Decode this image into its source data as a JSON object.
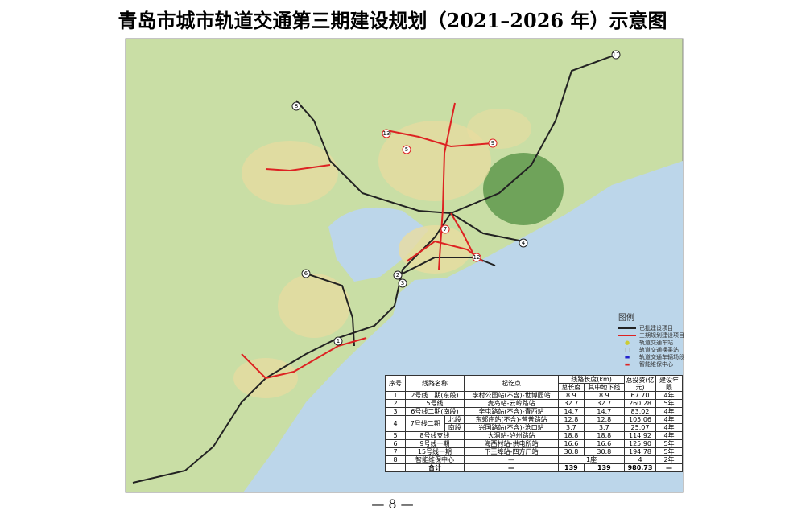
{
  "title": "青岛市城市轨道交通第三期建设规划（2021–2026 年）示意图",
  "map": {
    "markers": [
      "11",
      "8",
      "13",
      "9",
      "5",
      "7",
      "3",
      "2",
      "4",
      "1",
      "6",
      "12"
    ]
  },
  "legend": {
    "title": "图例",
    "items": [
      "已批建设项目",
      "三期规划建设项目",
      "轨道交通车站",
      "轨道交通换乘站",
      "轨道交通车辆场段",
      "智能维保中心"
    ]
  },
  "table": {
    "headers": [
      "序号",
      "线路名称",
      "起讫点",
      "线路长度(km)",
      "总投资(亿元)",
      "建设年限"
    ],
    "subheaders": [
      "总长度",
      "其中地下线"
    ],
    "rows": [
      {
        "no": "1",
        "name": "2号线二期(东段)",
        "range": "李村公园站(不含)-世博园站",
        "total": "8.9",
        "underground": "8.9",
        "invest": "67.70",
        "years": "4年"
      },
      {
        "no": "2",
        "name": "5号线",
        "range": "麦岛站-云岭路站",
        "total": "32.7",
        "underground": "32.7",
        "invest": "260.28",
        "years": "5年"
      },
      {
        "no": "3",
        "name": "6号线二期(南段)",
        "range": "辛屯路站(不含)-青西站",
        "total": "14.7",
        "underground": "14.7",
        "invest": "83.02",
        "years": "4年"
      },
      {
        "no": "4",
        "name": "7号线二期",
        "section": "北段",
        "range": "东郭庄站(不含)-营普路站",
        "total": "12.8",
        "underground": "12.8",
        "invest": "105.06",
        "years": "4年"
      },
      {
        "section": "南段",
        "range": "兴国路站(不含)-沧口站",
        "total": "3.7",
        "underground": "3.7",
        "invest": "25.07",
        "years": "4年"
      },
      {
        "no": "5",
        "name": "8号线支线",
        "range": "大洞站-泸州路站",
        "total": "18.8",
        "underground": "18.8",
        "invest": "114.92",
        "years": "4年"
      },
      {
        "no": "6",
        "name": "9号线一期",
        "range": "海西村站-供电所站",
        "total": "16.6",
        "underground": "16.6",
        "invest": "125.90",
        "years": "5年"
      },
      {
        "no": "7",
        "name": "15号线一期",
        "range": "下王埠站-四方厂站",
        "total": "30.8",
        "underground": "30.8",
        "invest": "194.78",
        "years": "5年"
      },
      {
        "no": "8",
        "name": "智能维保中心",
        "range": "—",
        "total": "1座",
        "invest": "4",
        "years": "2年"
      },
      {
        "name": "合计",
        "range": "—",
        "total": "139",
        "underground": "139",
        "invest": "980.73",
        "years": "—"
      }
    ]
  },
  "page_number": "— 8 —"
}
